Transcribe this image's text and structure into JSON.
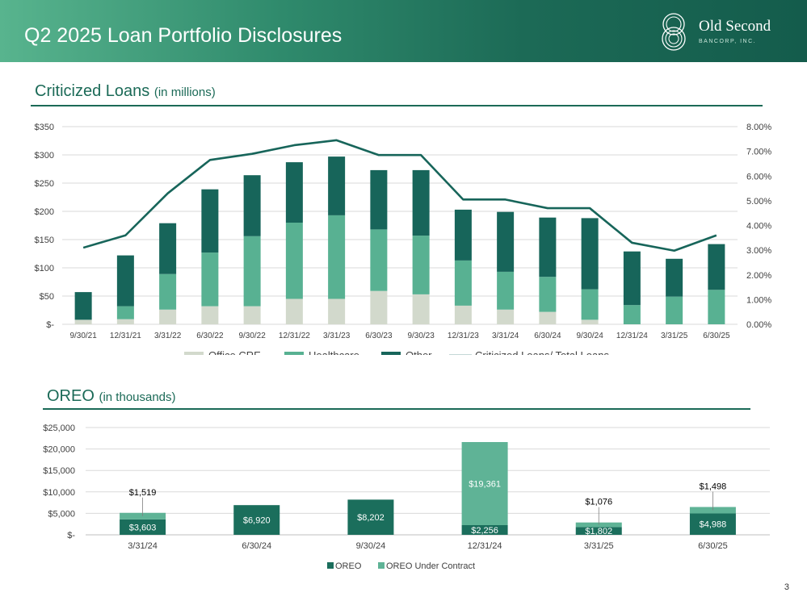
{
  "header": {
    "title": "Q2 2025 Loan Portfolio Disclosures"
  },
  "logo": {
    "name": "Old Second",
    "sub": "BANCORP, INC.",
    "mark": "interlinked-rings-logo"
  },
  "section1": {
    "title": "Criticized Loans",
    "unit": "(in millions)"
  },
  "section2": {
    "title": "OREO",
    "unit": "(in thousands)"
  },
  "page_number": "3",
  "colors": {
    "office": "#d2d9cc",
    "healthcare": "#58b192",
    "other": "#17655a",
    "line": "#17655a",
    "oreo": "#1b6e5c",
    "oreo_contract": "#5fb396",
    "title": "#1b6a57"
  },
  "chart_data": [
    {
      "type": "bar",
      "stacked": true,
      "title": "",
      "categories": [
        "9/30/21",
        "12/31/21",
        "3/31/22",
        "6/30/22",
        "9/30/22",
        "12/31/22",
        "3/31/23",
        "6/30/23",
        "9/30/23",
        "12/31/23",
        "3/31/24",
        "6/30/24",
        "9/30/24",
        "12/31/24",
        "3/31/25",
        "6/30/25"
      ],
      "series": [
        {
          "name": "Office CRE",
          "values": [
            8,
            9,
            26,
            32,
            32,
            45,
            45,
            59,
            53,
            33,
            26,
            22,
            8,
            0,
            0,
            0
          ]
        },
        {
          "name": "Healthcare",
          "values": [
            0,
            23,
            63,
            95,
            124,
            135,
            148,
            109,
            104,
            80,
            67,
            62,
            54,
            34,
            49,
            61
          ]
        },
        {
          "name": "Other",
          "values": [
            49,
            90,
            90,
            112,
            108,
            107,
            104,
            105,
            116,
            90,
            106,
            105,
            126,
            95,
            67,
            81
          ]
        },
        {
          "name": "Criticized Loans/ Total Loans",
          "type": "line",
          "axis": "right",
          "values": [
            3.1,
            3.6,
            5.3,
            6.65,
            6.9,
            7.25,
            7.45,
            6.85,
            6.85,
            5.05,
            5.05,
            4.7,
            4.7,
            3.3,
            2.98,
            3.6
          ]
        }
      ],
      "y_left": {
        "ylim": [
          0,
          350
        ],
        "ticks": [
          "$-",
          "$50",
          "$100",
          "$150",
          "$200",
          "$250",
          "$300",
          "$350"
        ]
      },
      "y_right": {
        "ylim": [
          0,
          8
        ],
        "ticks": [
          "0.00%",
          "1.00%",
          "2.00%",
          "3.00%",
          "4.00%",
          "5.00%",
          "6.00%",
          "7.00%",
          "8.00%"
        ]
      },
      "grid": true,
      "legend": "bottom"
    },
    {
      "type": "bar",
      "stacked": true,
      "title": "",
      "categories": [
        "3/31/24",
        "6/30/24",
        "9/30/24",
        "12/31/24",
        "3/31/25",
        "6/30/25"
      ],
      "series": [
        {
          "name": "OREO",
          "values": [
            3603,
            6920,
            8202,
            2256,
            1802,
            4988
          ],
          "labels": [
            "$3,603",
            "$6,920",
            "$8,202",
            "$2,256",
            "$1,802",
            "$4,988"
          ]
        },
        {
          "name": "OREO Under Contract",
          "values": [
            1519,
            0,
            0,
            19361,
            1076,
            1498
          ],
          "labels": [
            "$1,519",
            "",
            "",
            "$19,361",
            "$1,076",
            "$1,498"
          ]
        }
      ],
      "y": {
        "ylim": [
          0,
          25000
        ],
        "ticks": [
          "$-",
          "$5,000",
          "$10,000",
          "$15,000",
          "$20,000",
          "$25,000"
        ]
      },
      "grid": true,
      "legend": "bottom"
    }
  ]
}
